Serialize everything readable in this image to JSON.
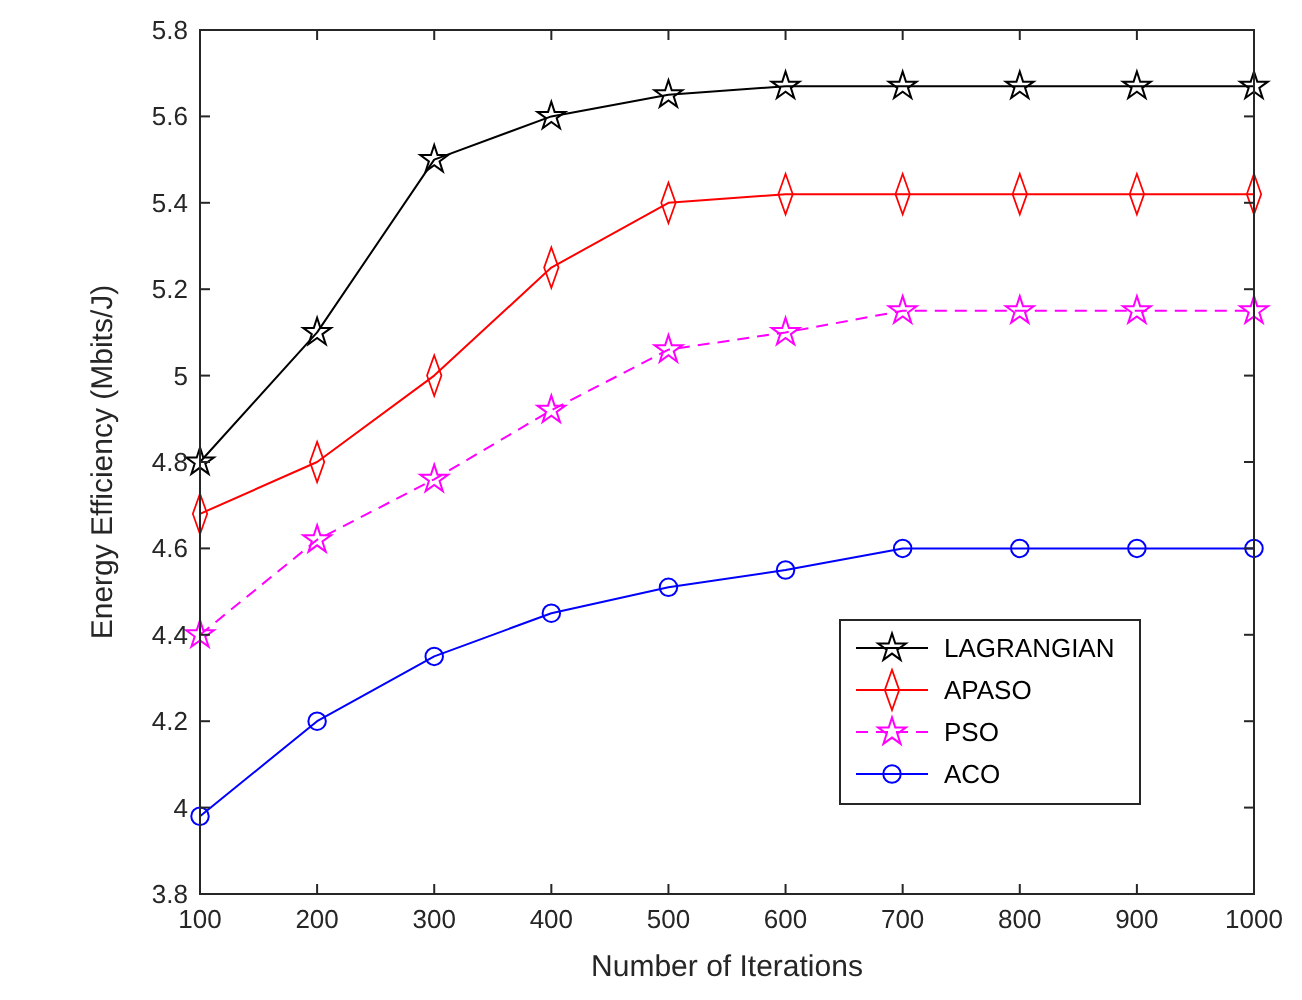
{
  "chart_data": {
    "type": "line",
    "xlabel": "Number of Iterations",
    "ylabel": "Energy Efficiency (Mbits/J)",
    "x": [
      100,
      200,
      300,
      400,
      500,
      600,
      700,
      800,
      900,
      1000
    ],
    "xlim": [
      100,
      1000
    ],
    "xticks": [
      100,
      200,
      300,
      400,
      500,
      600,
      700,
      800,
      900,
      1000
    ],
    "ylim": [
      3.8,
      5.8
    ],
    "yticks": [
      3.8,
      4,
      4.2,
      4.4,
      4.6,
      4.8,
      5,
      5.2,
      5.4,
      5.6,
      5.8
    ],
    "grid": false,
    "legend": "bottom right",
    "series": [
      {
        "name": "LAGRANGIAN",
        "color": "#000000",
        "marker": "star",
        "line_style": "solid",
        "values": [
          4.8,
          5.1,
          5.5,
          5.6,
          5.65,
          5.67,
          5.67,
          5.67,
          5.67,
          5.67
        ]
      },
      {
        "name": "APASO",
        "color": "#ff0000",
        "marker": "diamond",
        "line_style": "solid",
        "values": [
          4.68,
          4.8,
          5.0,
          5.25,
          5.4,
          5.42,
          5.42,
          5.42,
          5.42,
          5.42
        ]
      },
      {
        "name": "PSO",
        "color": "#ff00ff",
        "marker": "star",
        "line_style": "dashed",
        "values": [
          4.4,
          4.62,
          4.76,
          4.92,
          5.06,
          5.1,
          5.15,
          5.15,
          5.15,
          5.15
        ]
      },
      {
        "name": "ACO",
        "color": "#0000ff",
        "marker": "circle",
        "line_style": "solid",
        "values": [
          3.98,
          4.2,
          4.35,
          4.45,
          4.51,
          4.55,
          4.6,
          4.6,
          4.6,
          4.6
        ]
      }
    ]
  }
}
